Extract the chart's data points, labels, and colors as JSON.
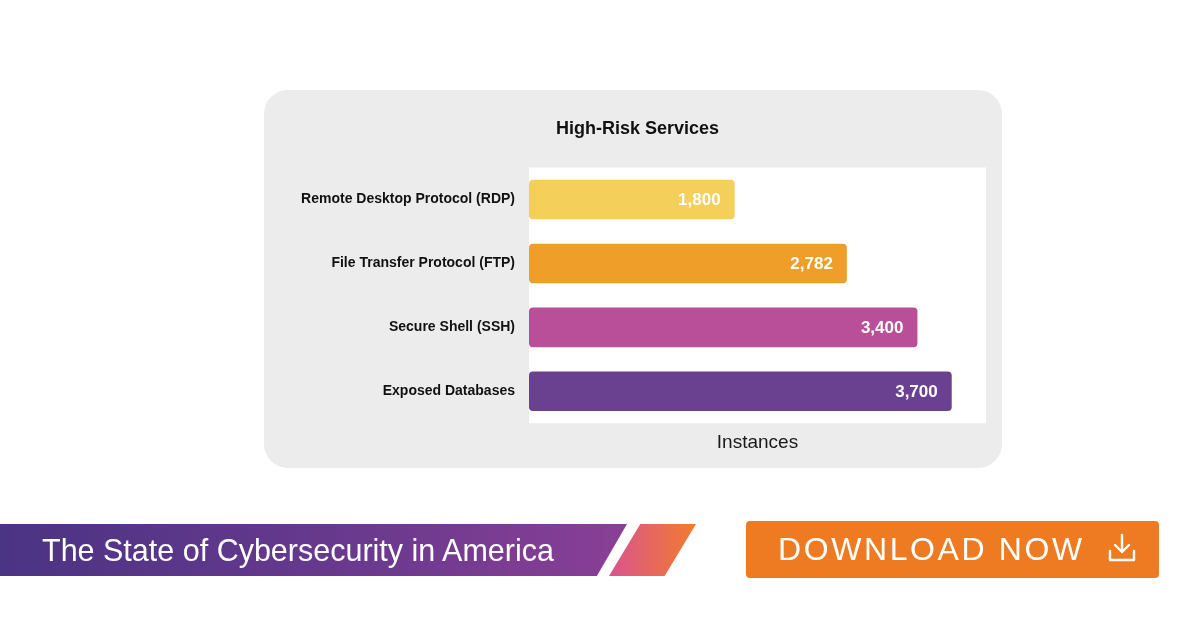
{
  "chart_data": {
    "type": "bar",
    "orientation": "horizontal",
    "title": "High-Risk Services",
    "xlabel": "Instances",
    "categories": [
      "Remote Desktop Protocol (RDP)",
      "File Transfer Protocol (FTP)",
      "Secure Shell (SSH)",
      "Exposed Databases"
    ],
    "values": [
      1800,
      2782,
      3400,
      3700
    ],
    "value_labels": [
      "1,800",
      "2,782",
      "3,400",
      "3,700"
    ],
    "colors": [
      "#f4cf5a",
      "#f09e2a",
      "#b84f98",
      "#6a4090"
    ],
    "grid": false,
    "tick_labels": "y",
    "annotations": [
      "The State of Cybersecurity in America",
      "DOWNLOAD NOW"
    ]
  }
}
